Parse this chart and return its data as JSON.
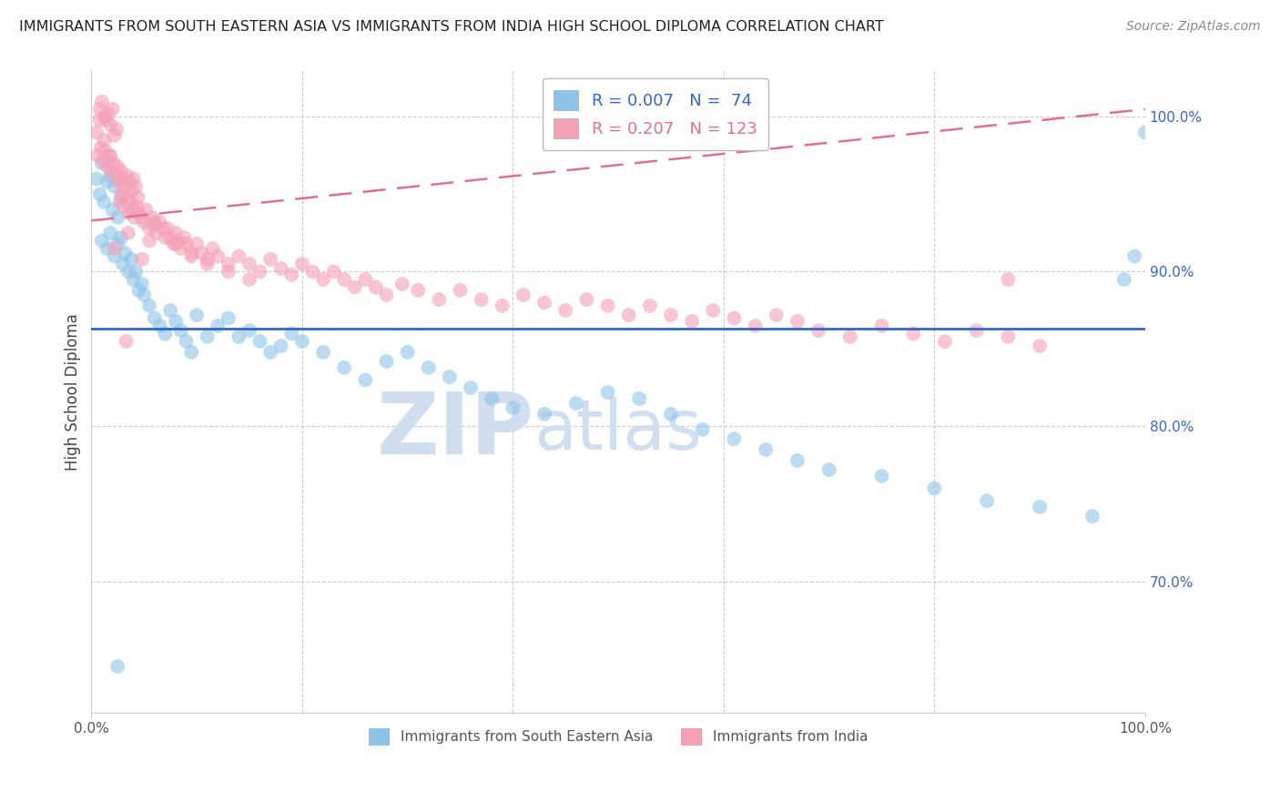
{
  "title": "IMMIGRANTS FROM SOUTH EASTERN ASIA VS IMMIGRANTS FROM INDIA HIGH SCHOOL DIPLOMA CORRELATION CHART",
  "source": "Source: ZipAtlas.com",
  "ylabel": "High School Diploma",
  "legend_blue_r": "R = 0.007",
  "legend_blue_n": "N =  74",
  "legend_pink_r": "R = 0.207",
  "legend_pink_n": "N = 123",
  "blue_color": "#8EC4E8",
  "pink_color": "#F4A0B5",
  "blue_line_color": "#3366CC",
  "pink_line_color": "#E07090",
  "watermark_color": "#D0DEF0",
  "xlim": [
    0.0,
    1.0
  ],
  "ylim": [
    0.615,
    1.03
  ],
  "blue_line_y": 0.855,
  "pink_line_x0": 0.0,
  "pink_line_y0": 0.933,
  "pink_line_x1": 1.0,
  "pink_line_y1": 1.005,
  "blue_x": [
    0.005,
    0.008,
    0.01,
    0.012,
    0.015,
    0.018,
    0.02,
    0.022,
    0.025,
    0.028,
    0.01,
    0.015,
    0.018,
    0.022,
    0.025,
    0.028,
    0.03,
    0.032,
    0.035,
    0.038,
    0.04,
    0.042,
    0.045,
    0.048,
    0.05,
    0.055,
    0.06,
    0.065,
    0.07,
    0.075,
    0.08,
    0.085,
    0.09,
    0.095,
    0.1,
    0.11,
    0.12,
    0.13,
    0.14,
    0.15,
    0.16,
    0.17,
    0.18,
    0.19,
    0.2,
    0.22,
    0.24,
    0.26,
    0.28,
    0.3,
    0.32,
    0.34,
    0.36,
    0.38,
    0.4,
    0.43,
    0.46,
    0.49,
    0.52,
    0.55,
    0.58,
    0.61,
    0.64,
    0.67,
    0.7,
    0.75,
    0.8,
    0.85,
    0.9,
    0.95,
    0.98,
    0.99,
    1.0,
    0.025
  ],
  "blue_y": [
    0.96,
    0.95,
    0.97,
    0.945,
    0.958,
    0.962,
    0.94,
    0.955,
    0.935,
    0.948,
    0.92,
    0.915,
    0.925,
    0.91,
    0.918,
    0.922,
    0.905,
    0.912,
    0.9,
    0.908,
    0.895,
    0.9,
    0.888,
    0.892,
    0.885,
    0.878,
    0.87,
    0.865,
    0.86,
    0.875,
    0.868,
    0.862,
    0.855,
    0.848,
    0.872,
    0.858,
    0.865,
    0.87,
    0.858,
    0.862,
    0.855,
    0.848,
    0.852,
    0.86,
    0.855,
    0.848,
    0.838,
    0.83,
    0.842,
    0.848,
    0.838,
    0.832,
    0.825,
    0.818,
    0.812,
    0.808,
    0.815,
    0.822,
    0.818,
    0.808,
    0.798,
    0.792,
    0.785,
    0.778,
    0.772,
    0.768,
    0.76,
    0.752,
    0.748,
    0.742,
    0.895,
    0.91,
    0.99,
    0.645
  ],
  "pink_x": [
    0.005,
    0.008,
    0.01,
    0.012,
    0.014,
    0.016,
    0.018,
    0.02,
    0.022,
    0.024,
    0.006,
    0.009,
    0.011,
    0.013,
    0.015,
    0.017,
    0.019,
    0.021,
    0.023,
    0.025,
    0.026,
    0.028,
    0.03,
    0.032,
    0.034,
    0.036,
    0.038,
    0.04,
    0.042,
    0.044,
    0.027,
    0.029,
    0.031,
    0.033,
    0.035,
    0.037,
    0.039,
    0.041,
    0.043,
    0.045,
    0.048,
    0.05,
    0.052,
    0.055,
    0.058,
    0.06,
    0.062,
    0.065,
    0.068,
    0.07,
    0.072,
    0.075,
    0.078,
    0.08,
    0.082,
    0.085,
    0.088,
    0.09,
    0.095,
    0.1,
    0.105,
    0.11,
    0.115,
    0.12,
    0.13,
    0.14,
    0.15,
    0.16,
    0.17,
    0.18,
    0.19,
    0.2,
    0.21,
    0.22,
    0.23,
    0.24,
    0.25,
    0.26,
    0.27,
    0.28,
    0.295,
    0.31,
    0.33,
    0.35,
    0.37,
    0.39,
    0.41,
    0.43,
    0.45,
    0.47,
    0.49,
    0.51,
    0.53,
    0.55,
    0.57,
    0.59,
    0.61,
    0.63,
    0.65,
    0.67,
    0.69,
    0.72,
    0.75,
    0.78,
    0.81,
    0.84,
    0.87,
    0.9,
    0.87,
    0.055,
    0.048,
    0.033,
    0.022,
    0.018,
    0.012,
    0.008,
    0.035,
    0.06,
    0.08,
    0.095,
    0.11,
    0.13,
    0.15
  ],
  "pink_y": [
    0.99,
    1.005,
    1.01,
    1.0,
    0.998,
    1.002,
    0.995,
    1.005,
    0.988,
    0.992,
    0.975,
    0.98,
    0.972,
    0.978,
    0.968,
    0.975,
    0.965,
    0.97,
    0.962,
    0.968,
    0.958,
    0.965,
    0.96,
    0.955,
    0.962,
    0.958,
    0.952,
    0.96,
    0.955,
    0.948,
    0.945,
    0.95,
    0.942,
    0.948,
    0.938,
    0.945,
    0.94,
    0.935,
    0.942,
    0.938,
    0.935,
    0.932,
    0.94,
    0.928,
    0.935,
    0.93,
    0.925,
    0.932,
    0.928,
    0.922,
    0.928,
    0.922,
    0.918,
    0.925,
    0.92,
    0.915,
    0.922,
    0.918,
    0.912,
    0.918,
    0.912,
    0.908,
    0.915,
    0.91,
    0.905,
    0.91,
    0.905,
    0.9,
    0.908,
    0.902,
    0.898,
    0.905,
    0.9,
    0.895,
    0.9,
    0.895,
    0.89,
    0.895,
    0.89,
    0.885,
    0.892,
    0.888,
    0.882,
    0.888,
    0.882,
    0.878,
    0.885,
    0.88,
    0.875,
    0.882,
    0.878,
    0.872,
    0.878,
    0.872,
    0.868,
    0.875,
    0.87,
    0.865,
    0.872,
    0.868,
    0.862,
    0.858,
    0.865,
    0.86,
    0.855,
    0.862,
    0.858,
    0.852,
    0.895,
    0.92,
    0.908,
    0.855,
    0.915,
    0.975,
    0.985,
    0.998,
    0.925,
    0.932,
    0.918,
    0.91,
    0.905,
    0.9,
    0.895
  ]
}
